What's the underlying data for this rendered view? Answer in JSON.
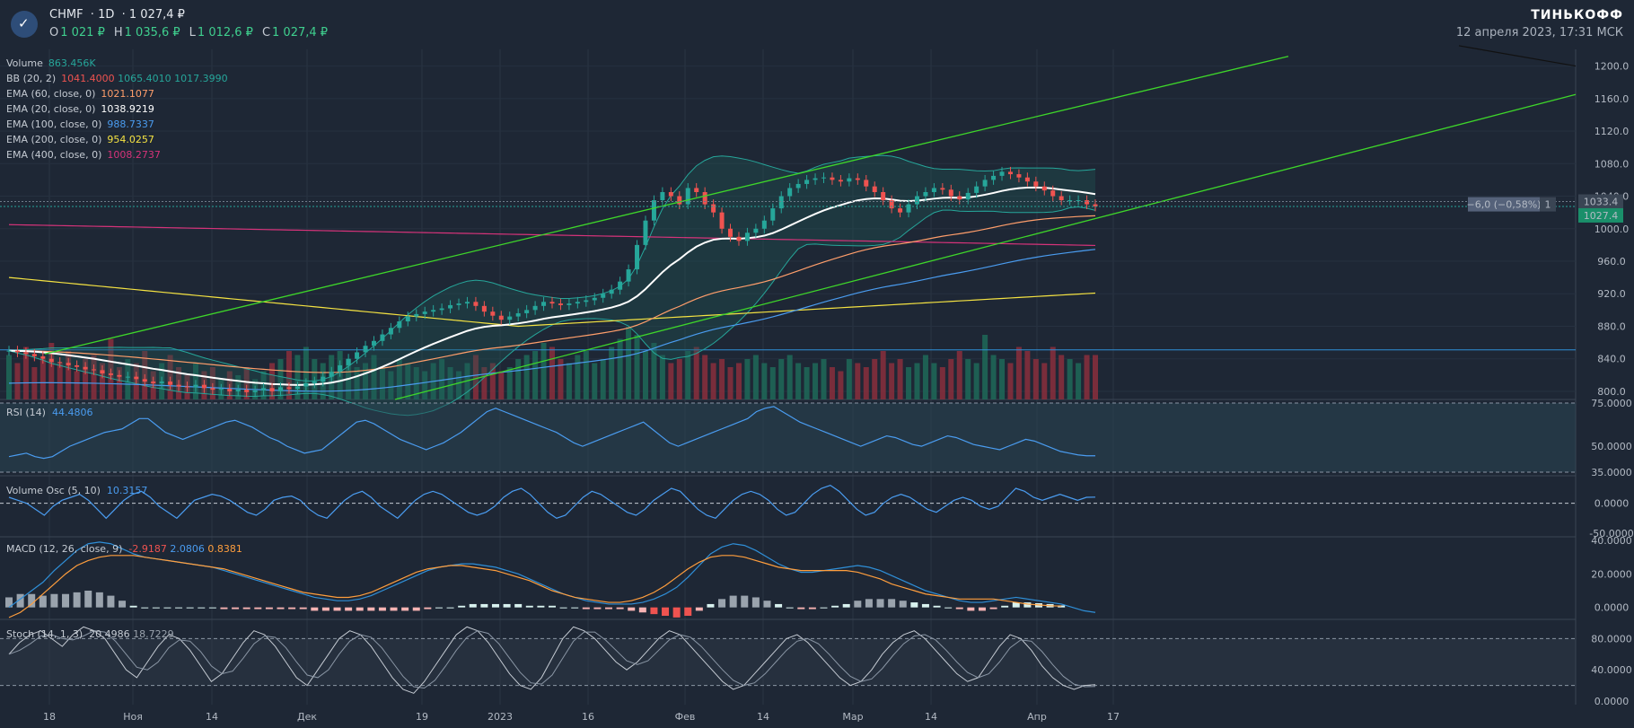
{
  "header": {
    "symbol": "CHMF",
    "interval": "1D",
    "last": "1 027,4 ₽",
    "ohlc": [
      {
        "k": "O",
        "v": "1 021 ₽"
      },
      {
        "k": "H",
        "v": "1 035,6 ₽"
      },
      {
        "k": "L",
        "v": "1 012,6 ₽"
      },
      {
        "k": "C",
        "v": "1 027,4 ₽"
      }
    ],
    "brand": "ТИНЬКОФФ",
    "datetime": "12 апреля 2023, 17:31 МСК"
  },
  "legend": [
    {
      "name": "Volume",
      "vals": [
        {
          "t": "863.456K",
          "c": "#26a69a"
        }
      ]
    },
    {
      "name": "BB (20, 2)",
      "vals": [
        {
          "t": "1041.4000",
          "c": "#ef5350"
        },
        {
          "t": "1065.4010",
          "c": "#26a69a"
        },
        {
          "t": "1017.3990",
          "c": "#26a69a"
        }
      ]
    },
    {
      "name": "EMA (60, close, 0)",
      "vals": [
        {
          "t": "1021.1077",
          "c": "#ff9e6b"
        }
      ]
    },
    {
      "name": "EMA (20, close, 0)",
      "vals": [
        {
          "t": "1038.9219",
          "c": "#ffffff"
        }
      ]
    },
    {
      "name": "EMA (100, close, 0)",
      "vals": [
        {
          "t": "988.7337",
          "c": "#4a9cf0"
        }
      ]
    },
    {
      "name": "EMA (200, close, 0)",
      "vals": [
        {
          "t": "954.0257",
          "c": "#f5e342"
        }
      ]
    },
    {
      "name": "EMA (400, close, 0)",
      "vals": [
        {
          "t": "1008.2737",
          "c": "#d6337a"
        }
      ]
    }
  ],
  "panes": {
    "rsi": {
      "name": "RSI (14)",
      "val": "44.4806",
      "val_color": "#4a9cf0"
    },
    "vosc": {
      "name": "Volume Osc (5, 10)",
      "val": "10.3157",
      "val_color": "#4a9cf0"
    },
    "macd": {
      "name": "MACD (12, 26, close, 9)",
      "vals": [
        {
          "t": "-2.9187",
          "c": "#ef5350"
        },
        {
          "t": "2.0806",
          "c": "#4a9cf0"
        },
        {
          "t": "0.8381",
          "c": "#ff9e3d"
        }
      ]
    },
    "stoch": {
      "name": "Stoch (14, 1, 3)",
      "vals": [
        {
          "t": "20.4986",
          "c": "#c5cbd3"
        },
        {
          "t": "18.7229",
          "c": "#9aa3ad"
        }
      ]
    }
  },
  "axis_labels": {
    "price_ticks": [
      "1200.0",
      "1160.0",
      "1120.0",
      "1080.0",
      "1040.0",
      "1000.0",
      "960.0",
      "920.0",
      "880.0",
      "840.0",
      "800.0"
    ],
    "price_current": "1027.4",
    "price_ref": "1033.4",
    "change_badge": "−6,0 (−0,58%)",
    "change_count": "1",
    "rsi_ticks": [
      "75.0000",
      "50.0000",
      "35.0000"
    ],
    "vosc_ticks": [
      "0.0000",
      "-50.0000"
    ],
    "macd_ticks": [
      "40.0000",
      "20.0000",
      "0.0000"
    ],
    "stoch_ticks": [
      "80.0000",
      "40.0000",
      "0.0000"
    ],
    "time_ticks": [
      "18",
      "Ноя",
      "14",
      "Дек",
      "19",
      "2023",
      "16",
      "Фев",
      "14",
      "Мар",
      "14",
      "Апр",
      "17"
    ]
  },
  "chart_data": {
    "type": "candlestick",
    "symbol": "CHMF",
    "interval": "1D",
    "price_range": [
      790,
      1215
    ],
    "volume_range": [
      0,
      1500000
    ],
    "rsi_range": [
      35,
      75
    ],
    "vosc_range": [
      -50,
      40
    ],
    "macd_range": [
      -5,
      40
    ],
    "stoch_range": [
      0,
      100
    ],
    "closes": [
      850,
      848,
      846,
      843,
      840,
      836,
      835,
      832,
      830,
      827,
      826,
      822,
      820,
      818,
      818,
      815,
      812,
      810,
      812,
      808,
      806,
      805,
      808,
      804,
      802,
      803,
      800,
      802,
      799,
      801,
      804,
      800,
      805,
      803,
      806,
      810,
      812,
      818,
      824,
      832,
      840,
      848,
      856,
      862,
      870,
      878,
      886,
      892,
      895,
      898,
      900,
      902,
      906,
      908,
      910,
      905,
      898,
      893,
      888,
      892,
      896,
      900,
      905,
      910,
      908,
      906,
      908,
      910,
      912,
      915,
      920,
      925,
      935,
      950,
      980,
      1010,
      1035,
      1045,
      1040,
      1030,
      1050,
      1045,
      1030,
      1020,
      1000,
      990,
      985,
      995,
      1000,
      1010,
      1025,
      1040,
      1050,
      1055,
      1060,
      1062,
      1063,
      1060,
      1058,
      1062,
      1060,
      1052,
      1045,
      1035,
      1025,
      1020,
      1030,
      1040,
      1045,
      1050,
      1048,
      1040,
      1036,
      1044,
      1052,
      1060,
      1065,
      1070,
      1067,
      1063,
      1058,
      1052,
      1047,
      1040,
      1035,
      1035,
      1035,
      1030,
      1027.4
    ],
    "rsi": [
      44,
      45,
      46,
      44,
      43,
      44,
      47,
      50,
      52,
      54,
      56,
      58,
      59,
      60,
      63,
      66,
      66,
      62,
      58,
      56,
      54,
      56,
      58,
      60,
      62,
      64,
      65,
      63,
      61,
      58,
      55,
      53,
      50,
      48,
      46,
      47,
      48,
      52,
      56,
      60,
      64,
      65,
      63,
      60,
      57,
      54,
      52,
      50,
      48,
      50,
      52,
      55,
      58,
      62,
      66,
      70,
      72,
      70,
      68,
      66,
      64,
      62,
      60,
      58,
      55,
      52,
      50,
      52,
      54,
      56,
      58,
      60,
      62,
      64,
      60,
      56,
      52,
      50,
      52,
      54,
      56,
      58,
      60,
      62,
      64,
      66,
      70,
      72,
      73,
      70,
      67,
      64,
      62,
      60,
      58,
      56,
      54,
      52,
      50,
      52,
      54,
      56,
      55,
      53,
      51,
      50,
      52,
      54,
      56,
      55,
      53,
      51,
      50,
      49,
      48,
      50,
      52,
      54,
      53,
      51,
      49,
      47,
      46,
      45,
      44.5,
      44.5
    ],
    "vosc": [
      10,
      5,
      0,
      -10,
      -20,
      -5,
      5,
      10,
      15,
      5,
      -10,
      -25,
      -10,
      5,
      15,
      20,
      10,
      -5,
      -15,
      -25,
      -10,
      5,
      10,
      15,
      12,
      5,
      -5,
      -15,
      -20,
      -10,
      5,
      10,
      12,
      5,
      -10,
      -20,
      -25,
      -10,
      5,
      15,
      20,
      10,
      -5,
      -15,
      -25,
      -10,
      5,
      15,
      20,
      15,
      5,
      -5,
      -15,
      -20,
      -15,
      -5,
      10,
      20,
      25,
      15,
      0,
      -15,
      -25,
      -20,
      -5,
      10,
      20,
      15,
      5,
      -5,
      -15,
      -20,
      -10,
      5,
      15,
      25,
      20,
      5,
      -10,
      -20,
      -25,
      -10,
      5,
      15,
      20,
      15,
      5,
      -10,
      -20,
      -15,
      0,
      15,
      25,
      30,
      20,
      5,
      -10,
      -20,
      -15,
      0,
      10,
      15,
      10,
      0,
      -10,
      -15,
      -5,
      5,
      10,
      5,
      -5,
      -10,
      -5,
      10,
      25,
      20,
      10,
      5,
      10,
      15,
      10,
      5,
      10,
      10.3
    ],
    "macd": [
      0,
      5,
      10,
      15,
      22,
      28,
      34,
      38,
      39,
      38,
      35,
      32,
      30,
      29,
      28,
      27,
      26,
      25,
      24,
      22,
      20,
      18,
      16,
      14,
      12,
      10,
      8,
      6,
      5,
      4,
      4,
      5,
      7,
      10,
      13,
      16,
      19,
      22,
      24,
      25,
      26,
      26,
      25,
      24,
      22,
      20,
      17,
      14,
      11,
      8,
      6,
      4,
      3,
      2,
      2,
      2,
      3,
      5,
      8,
      12,
      18,
      25,
      32,
      36,
      38,
      37,
      34,
      30,
      26,
      23,
      21,
      21,
      22,
      23,
      24,
      25,
      24,
      22,
      19,
      16,
      13,
      10,
      8,
      6,
      4,
      3,
      3,
      4,
      5,
      6,
      5,
      4,
      3,
      2,
      0,
      -2,
      -3
    ],
    "macd_signal": [
      -6,
      -3,
      2,
      8,
      14,
      20,
      25,
      28,
      30,
      31,
      31,
      31,
      30,
      29,
      28,
      27,
      26,
      25,
      24,
      23,
      21,
      19,
      17,
      15,
      13,
      11,
      9,
      8,
      7,
      6,
      6,
      7,
      9,
      12,
      15,
      18,
      21,
      23,
      24,
      25,
      25,
      24,
      23,
      22,
      20,
      18,
      16,
      13,
      10,
      8,
      6,
      5,
      4,
      3,
      3,
      4,
      6,
      9,
      13,
      18,
      23,
      27,
      30,
      31,
      31,
      30,
      28,
      26,
      24,
      23,
      22,
      22,
      22,
      22,
      22,
      21,
      19,
      17,
      14,
      12,
      10,
      8,
      7,
      6,
      5,
      5,
      5,
      5,
      4,
      3,
      2,
      1.5,
      1,
      0.8
    ],
    "stoch": [
      60,
      75,
      85,
      90,
      80,
      70,
      85,
      95,
      90,
      80,
      60,
      40,
      30,
      50,
      70,
      85,
      80,
      65,
      45,
      25,
      35,
      55,
      75,
      90,
      85,
      70,
      50,
      30,
      20,
      40,
      60,
      80,
      90,
      85,
      70,
      50,
      30,
      15,
      10,
      25,
      45,
      65,
      85,
      95,
      90,
      75,
      55,
      35,
      20,
      15,
      30,
      55,
      80,
      95,
      90,
      80,
      65,
      50,
      40,
      50,
      65,
      80,
      90,
      85,
      70,
      55,
      40,
      25,
      15,
      20,
      35,
      50,
      65,
      80,
      85,
      75,
      60,
      45,
      30,
      20,
      25,
      40,
      60,
      75,
      85,
      90,
      80,
      65,
      50,
      35,
      25,
      30,
      50,
      70,
      85,
      80,
      65,
      45,
      30,
      20,
      15,
      20,
      21
    ]
  }
}
